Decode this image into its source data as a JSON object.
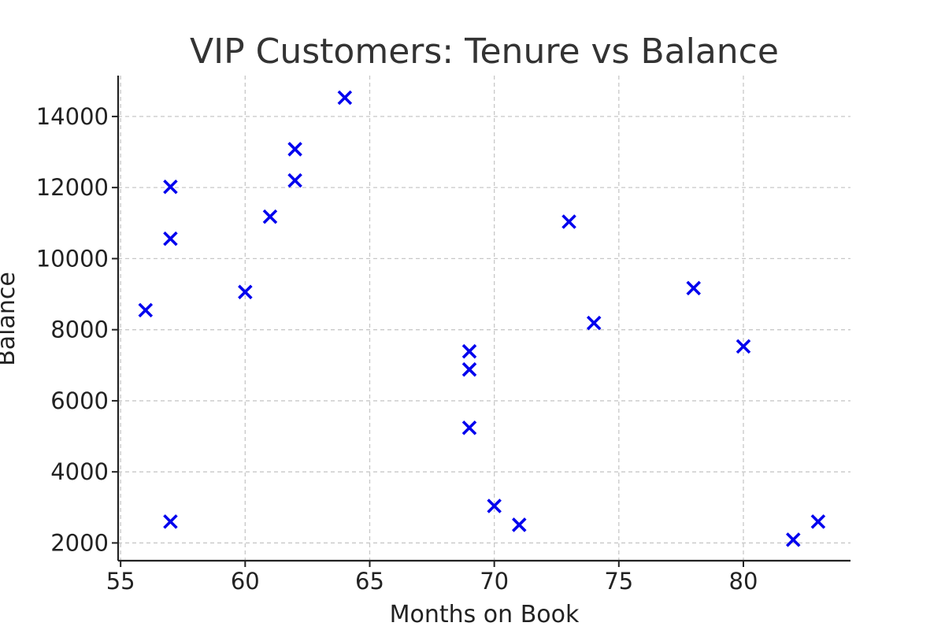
{
  "chart_data": {
    "type": "scatter",
    "title": "VIP Customers: Tenure vs Balance",
    "xlabel": "Months on Book",
    "ylabel": "Balance",
    "xlim": [
      54.9,
      84.3
    ],
    "ylim": [
      1500,
      15150
    ],
    "xticks": [
      55,
      60,
      65,
      70,
      75,
      80
    ],
    "yticks": [
      2000,
      4000,
      6000,
      8000,
      10000,
      12000,
      14000
    ],
    "grid": true,
    "marker": "x",
    "color": "#0000ee",
    "points": [
      {
        "x": 56,
        "y": 8550
      },
      {
        "x": 57,
        "y": 12020
      },
      {
        "x": 57,
        "y": 10560
      },
      {
        "x": 57,
        "y": 2600
      },
      {
        "x": 60,
        "y": 9060
      },
      {
        "x": 61,
        "y": 11180
      },
      {
        "x": 62,
        "y": 13080
      },
      {
        "x": 62,
        "y": 12200
      },
      {
        "x": 64,
        "y": 14530
      },
      {
        "x": 69,
        "y": 7390
      },
      {
        "x": 69,
        "y": 6880
      },
      {
        "x": 69,
        "y": 5240
      },
      {
        "x": 70,
        "y": 3040
      },
      {
        "x": 71,
        "y": 2510
      },
      {
        "x": 73,
        "y": 11040
      },
      {
        "x": 74,
        "y": 8190
      },
      {
        "x": 78,
        "y": 9170
      },
      {
        "x": 80,
        "y": 7530
      },
      {
        "x": 82,
        "y": 2090
      },
      {
        "x": 83,
        "y": 2600
      }
    ]
  }
}
